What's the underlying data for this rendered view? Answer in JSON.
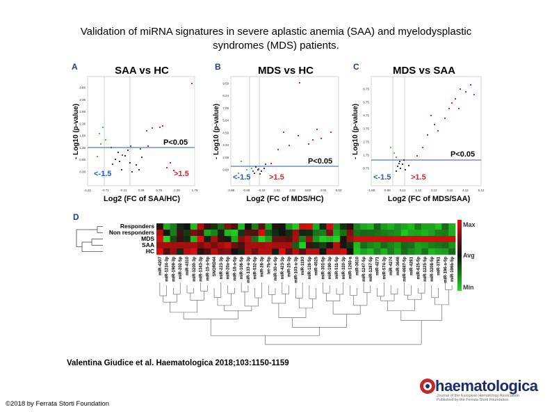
{
  "slide": {
    "title_line1": "Validation of miRNA signatures in severe aplastic anemia (SAA) and myelodysplastic",
    "title_line2": "syndromes (MDS) patients.",
    "citation": "Valentina Giudice et al. Haematologica 2018;103:1150-1159",
    "copyright": "©2018 by Ferrata Storti Foundation"
  },
  "logo": {
    "word": "haematologica",
    "sub1": "Journal of the European Hematology Association",
    "sub2": "Published by the Ferrata Storti Foundation"
  },
  "panels": {
    "A": {
      "letter": "A",
      "title": "SAA vs HC",
      "xlabel": "Log2 (FC of SAA/HC)",
      "ylabel": "- Log10 (p-value)",
      "pval": "P<0.05",
      "left": "<-1.5",
      "right": ">1.5",
      "xticks": [
        "-1.21",
        "-0.71",
        "-0.21",
        "0.29",
        "0.79",
        "1.29",
        "1.79"
      ],
      "yticks": [
        "3.88",
        "3.38",
        "2.88",
        "2.38",
        "1.88",
        "1.38",
        "0.88",
        "0.38"
      ]
    },
    "B": {
      "letter": "B",
      "title": "MDS vs HC",
      "xlabel": "Log2 (FC of MDS/HC)",
      "ylabel": "- Log10 (p-value)",
      "pval": "P<0.05",
      "left": "<-1.5",
      "right": ">1.5",
      "xticks": [
        "-2.88",
        "-0.88",
        "-0.18",
        "1.02",
        "2.02",
        "3.02",
        "4.02",
        "5.02"
      ],
      "yticks": [
        "9.59",
        "8.24",
        "7.09",
        "5.84",
        "4.59",
        "3.34",
        "2.09",
        "0.84"
      ]
    },
    "C": {
      "letter": "C",
      "title": "MDS vs SAA",
      "xlabel": "Log2 (FC of MDS/SAA)",
      "ylabel": "- Log10 (p-value)",
      "pval": "P<0.05",
      "left": "<-1.5",
      "right": ">1.5",
      "xticks": [
        "-1.88",
        "-0.88",
        "0.12",
        "1.12",
        "2.12",
        "3.12",
        "4.12",
        "5.12"
      ],
      "yticks": [
        "6.75",
        "5.75",
        "4.75",
        "3.75",
        "2.75",
        "1.75",
        "0.75"
      ]
    },
    "D": {
      "letter": "D",
      "rows": [
        "Responders",
        "Non responders",
        "MDS",
        "SAA",
        "HC"
      ],
      "legend": {
        "max": "Max",
        "avg": "Avg",
        "min": "Min"
      },
      "columns": [
        "miR-4207",
        "miR-1234-3p",
        "miR-1909-3p",
        "miR-202-5p",
        "miR-4310",
        "miR-3200-3p",
        "miR-1343-3p",
        "miR-15-a-5p",
        "SNORD44",
        "miR-223-3p",
        "miR-20a-5p",
        "miR-18-a-5p",
        "miR-106-5p",
        "miR-133-a-3p",
        "miR-532-5p",
        "miR-28-3p",
        "let-7b-5p",
        "miR-30-e-5p",
        "miR-423-3p",
        "miR-25-3p",
        "miR-103-a-3p",
        "miR-1193",
        "miR-126-5p",
        "miR-4525",
        "miR-301-5p",
        "miR-190-3p",
        "miR-511-5p",
        "miR-320-3p",
        "miR-1260-a",
        "miR-3610",
        "miR-1247-5p",
        "miR-1287-5p",
        "miR-4271",
        "miR-574-3p",
        "miR-4274",
        "miR-3646",
        "miR-4687-5p",
        "miR-4281",
        "miR-625-5p",
        "miR-1225-5p",
        "miR-3208-5p",
        "miR-3781",
        "miR-196-a-5p",
        "miR-196b-5p"
      ]
    }
  },
  "colors": {
    "high": "#e01010",
    "low": "#22dd22",
    "mid": "#111111",
    "guide": "#5577cc",
    "left_label": "#2255cc",
    "right_label": "#dd2222",
    "logo": "#1e2a6b"
  }
}
